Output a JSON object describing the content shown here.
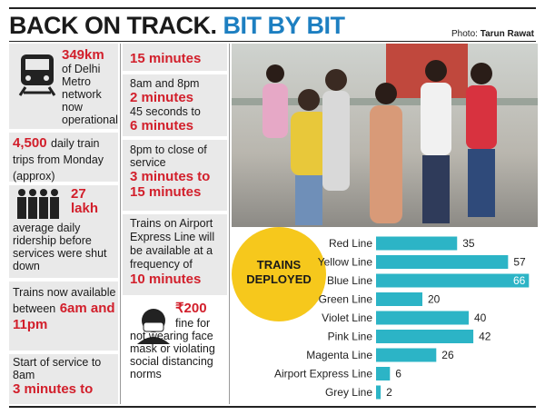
{
  "header": {
    "title": "BACK ON TRACK.",
    "title_highlight": "BIT BY BIT",
    "photo_credit_label": "Photo:",
    "photo_credit_name": "Tarun Rawat"
  },
  "left_column": [
    {
      "highlight": "349km",
      "text": "of Delhi Metro network now operational"
    },
    {
      "highlight": "4,500",
      "text": "daily train trips from Monday (approx)"
    },
    {
      "highlight": "27 lakh",
      "text": "average daily ridership before services were shut down"
    },
    {
      "text": "Trains now available between",
      "highlight": "6am and 11pm"
    },
    {
      "text": "Start of service to 8am",
      "highlight": "3 minutes to"
    }
  ],
  "middle_column": [
    {
      "highlight": "15 minutes"
    },
    {
      "text": "8am and 8pm",
      "highlight": "2 minutes",
      "text2": "45 seconds to",
      "highlight2": "6 minutes"
    },
    {
      "text": "8pm to close of service",
      "highlight": "3 minutes to 15 minutes"
    },
    {
      "text": "Trains on Airport Express Line will be available at a frequency of",
      "highlight": "10 minutes"
    },
    {
      "highlight": "₹200",
      "text": "fine for not wearing face mask or violating social distancing norms"
    }
  ],
  "chart_data": {
    "type": "bar",
    "title": "TRAINS DEPLOYED",
    "categories": [
      "Red Line",
      "Yellow Line",
      "Blue Line",
      "Green Line",
      "Violet Line",
      "Pink Line",
      "Magenta Line",
      "Airport Express Line",
      "Grey Line"
    ],
    "values": [
      35,
      57,
      66,
      20,
      40,
      42,
      26,
      6,
      2
    ],
    "color": "#2cb4c6"
  }
}
